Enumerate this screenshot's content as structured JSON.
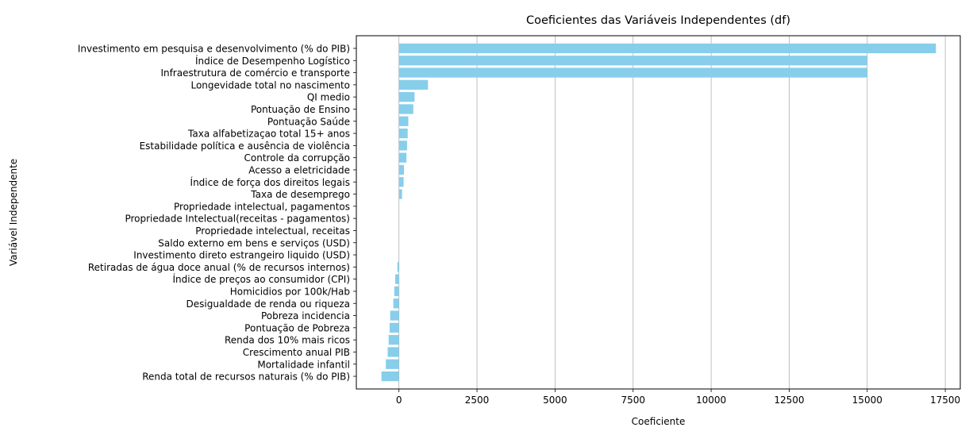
{
  "chart_data": {
    "type": "bar",
    "orientation": "horizontal",
    "title": "Coeficientes das Variáveis Independentes (df)",
    "xlabel": "Coeficiente",
    "ylabel": "Variável Independente",
    "xlim": [
      -1365,
      17980
    ],
    "xticks": [
      0,
      2500,
      5000,
      7500,
      10000,
      12500,
      15000,
      17500
    ],
    "grid": "x",
    "color": "#87ceeb",
    "categories": [
      "Investimento em pesquisa e desenvolvimento (% do PIB)",
      "Índice de Desempenho Logístico",
      "Infraestrutura de comércio e transporte",
      "Longevidade total no nascimento",
      "QI medio",
      "Pontuação de Ensino",
      "Pontuação Saúde",
      "Taxa alfabetizaçao total 15+ anos",
      "Estabilidade política e ausência de violência",
      "Controle da corrupção",
      "Acesso a eletricidade",
      "Índice de força dos direitos legais",
      "Taxa de desemprego",
      "Propriedade intelectual, pagamentos",
      "Propriedade Intelectual(receitas - pagamentos)",
      "Propriedade intelectual, receitas",
      "Saldo externo em bens e serviços (USD)",
      "Investimento direto estrangeiro liquido (USD)",
      "Retiradas de água doce anual (% de recursos internos)",
      "Índice de preços ao consumidor (CPI)",
      "Homicidios por 100k/Hab",
      "Desigualdade de renda ou riqueza",
      "Pobreza incidencia",
      "Pontuação de Pobreza",
      "Renda dos 10% mais ricos",
      "Crescimento anual PIB",
      "Mortalidade infantil",
      "Renda total de recursos naturais (% do PIB)"
    ],
    "values": [
      17200,
      15000,
      15000,
      930,
      500,
      460,
      300,
      280,
      260,
      240,
      160,
      150,
      100,
      0,
      0,
      0,
      0,
      0,
      -50,
      -120,
      -150,
      -180,
      -280,
      -300,
      -330,
      -360,
      -420,
      -560
    ]
  }
}
